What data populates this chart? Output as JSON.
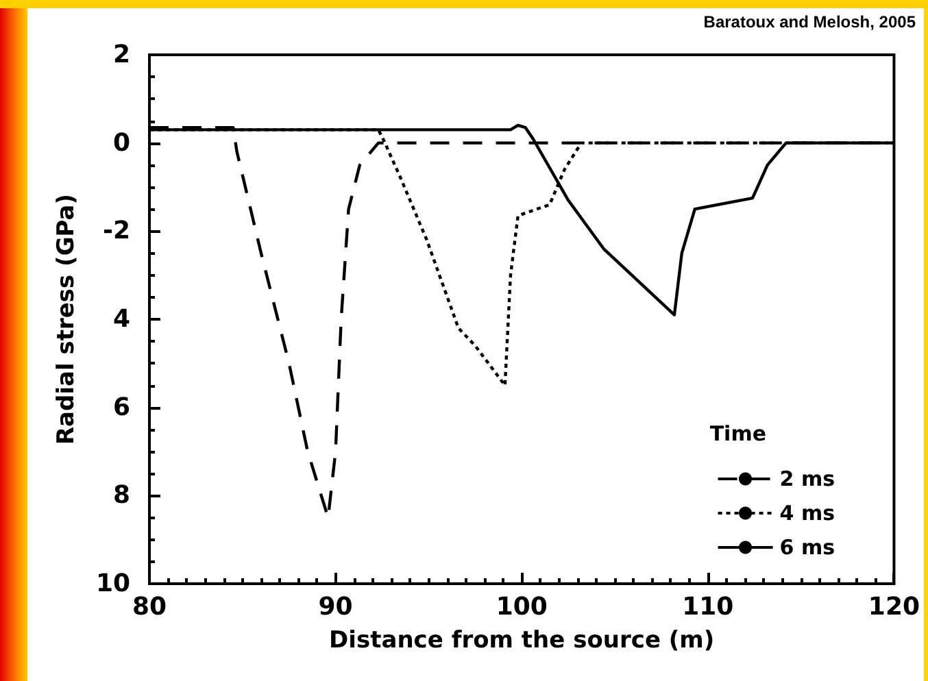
{
  "chart_data": {
    "type": "line",
    "xlabel": "Distance from the source (m)",
    "ylabel": "Radial stress (GPa)",
    "annotations": [
      "Baratoux and Melosh, 2005"
    ],
    "legend_title": "Time",
    "legend": "bottom right",
    "grid": false,
    "marker": "none",
    "xlim": [
      80,
      120
    ],
    "xticks": [
      80,
      90,
      100,
      110,
      120
    ],
    "ylim": [
      -10,
      2
    ],
    "yticks": [
      2,
      0,
      -2,
      {
        "value": -4,
        "label": "4"
      },
      {
        "value": -6,
        "label": "6"
      },
      {
        "value": -8,
        "label": "8"
      },
      {
        "value": -10,
        "label": "10"
      }
    ],
    "series": [
      {
        "name": "2 ms",
        "color": "#000000",
        "line_style": "dashed",
        "x": [
          80,
          84.5,
          84.7,
          86,
          87.5,
          88.5,
          89.6,
          90,
          90.3,
          90.7,
          91.3,
          92.3,
          120
        ],
        "values": [
          0.35,
          0.35,
          -0.2,
          -2.5,
          -5,
          -7,
          -8.5,
          -7,
          -4,
          -1.5,
          -0.5,
          0,
          0
        ]
      },
      {
        "name": "4 ms",
        "color": "#000000",
        "line_style": "dotted",
        "x": [
          80,
          92.3,
          92.6,
          93.5,
          94.9,
          96.6,
          97.5,
          99.1,
          99.4,
          99.8,
          101.5,
          102.3,
          103.2,
          120
        ],
        "values": [
          0.3,
          0.3,
          0.05,
          -0.8,
          -2.2,
          -4.2,
          -4.6,
          -5.5,
          -3,
          -1.65,
          -1.4,
          -0.6,
          0,
          0
        ]
      },
      {
        "name": "6 ms",
        "color": "#000000",
        "line_style": "solid",
        "x": [
          80,
          99.4,
          99.8,
          100.2,
          100.6,
          102.5,
          104.4,
          108.2,
          108.6,
          109.3,
          112.4,
          113.2,
          114.2,
          120
        ],
        "values": [
          0.3,
          0.3,
          0.4,
          0.35,
          0.1,
          -1.3,
          -2.4,
          -3.9,
          -2.5,
          -1.5,
          -1.25,
          -0.5,
          0,
          0
        ]
      }
    ]
  }
}
